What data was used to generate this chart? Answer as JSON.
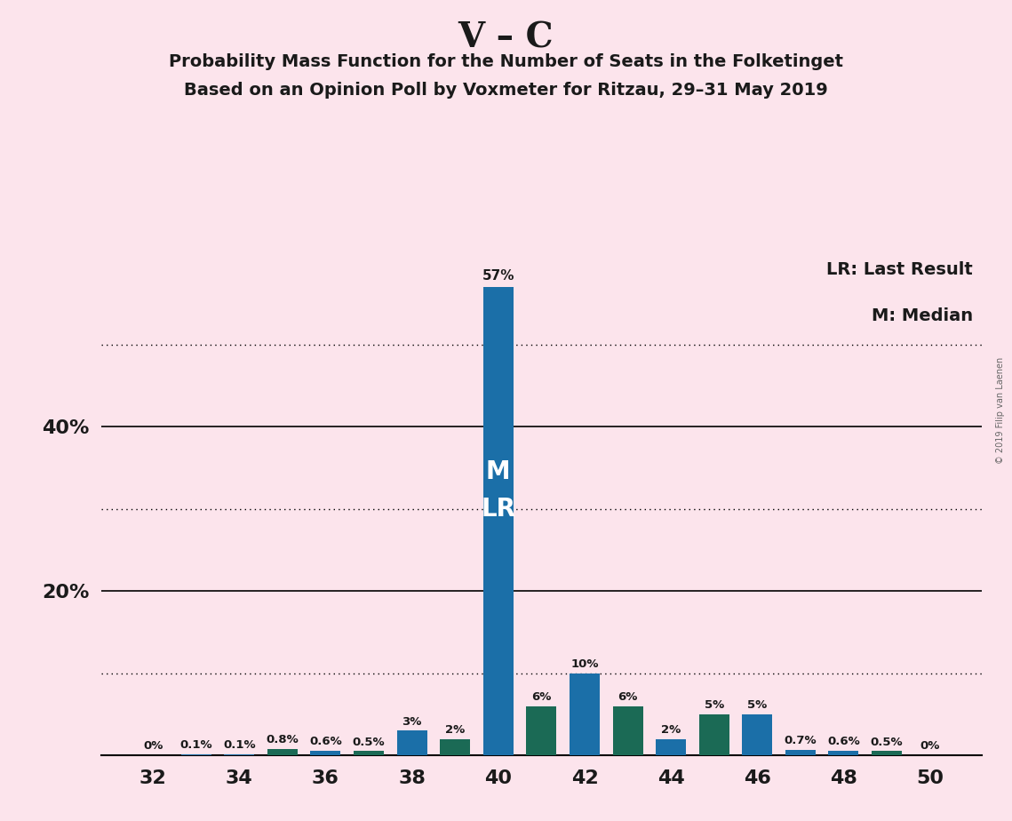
{
  "title": "V – C",
  "subtitle1": "Probability Mass Function for the Number of Seats in the Folketinget",
  "subtitle2": "Based on an Opinion Poll by Voxmeter for Ritzau, 29–31 May 2019",
  "copyright": "© 2019 Filip van Laenen",
  "legend_lr": "LR: Last Result",
  "legend_m": "M: Median",
  "seats": [
    32,
    33,
    34,
    35,
    36,
    37,
    38,
    39,
    40,
    41,
    42,
    43,
    44,
    45,
    46,
    47,
    48,
    49,
    50
  ],
  "values": [
    0.0,
    0.1,
    0.1,
    0.8,
    0.6,
    0.5,
    3.0,
    2.0,
    57.0,
    6.0,
    10.0,
    6.0,
    2.0,
    5.0,
    5.0,
    0.7,
    0.6,
    0.5,
    0.0
  ],
  "labels": [
    "0%",
    "0.1%",
    "0.1%",
    "0.8%",
    "0.6%",
    "0.5%",
    "3%",
    "2%",
    "57%",
    "6%",
    "10%",
    "6%",
    "2%",
    "5%",
    "5%",
    "0.7%",
    "0.6%",
    "0.5%",
    "0%"
  ],
  "colors": [
    "#1b6fa8",
    "#1b6fa8",
    "#1b6fa8",
    "#1b6a55",
    "#1b6fa8",
    "#1b6a55",
    "#1b6fa8",
    "#1b6a55",
    "#1b6fa8",
    "#1b6a55",
    "#1b6fa8",
    "#1b6a55",
    "#1b6fa8",
    "#1b6a55",
    "#1b6fa8",
    "#1b6fa8",
    "#1b6fa8",
    "#1b6a55",
    "#1b6a55"
  ],
  "median_seat": 40,
  "lr_seat": 40,
  "background_color": "#fce4ec",
  "solid_yticks": [
    0,
    20,
    40
  ],
  "dotted_yticks": [
    10,
    30,
    50
  ],
  "bar_width": 0.7,
  "ylim_max": 62,
  "xlim_min": 30.8,
  "xlim_max": 51.2
}
